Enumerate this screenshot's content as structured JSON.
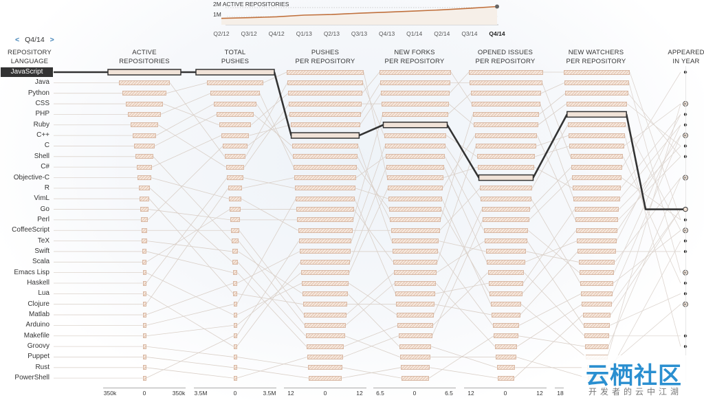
{
  "header": {
    "quarter": "Q4/14",
    "prev_arrow": "<",
    "next_arrow": ">"
  },
  "mini_chart": {
    "title": "2M ACTIVE REPOSITORIES",
    "ref_label": "1M",
    "quarters": [
      "Q2/12",
      "Q3/12",
      "Q4/12",
      "Q1/13",
      "Q2/13",
      "Q3/13",
      "Q4/13",
      "Q1/14",
      "Q2/14",
      "Q3/14",
      "Q4/14"
    ],
    "selected_quarter": "Q4/14",
    "line_color": "#c0703c",
    "values": [
      1.0,
      1.05,
      1.12,
      1.25,
      1.3,
      1.4,
      1.48,
      1.57,
      1.66,
      1.78,
      1.92
    ]
  },
  "columns": [
    {
      "line1": "REPOSITORY",
      "line2": "LANGUAGE"
    },
    {
      "line1": "ACTIVE",
      "line2": "REPOSITORIES"
    },
    {
      "line1": "TOTAL",
      "line2": "PUSHES"
    },
    {
      "line1": "PUSHES",
      "line2": "PER REPOSITORY"
    },
    {
      "line1": "NEW FORKS",
      "line2": "PER REPOSITORY"
    },
    {
      "line1": "OPENED ISSUES",
      "line2": "PER REPOSITORY"
    },
    {
      "line1": "NEW WATCHERS",
      "line2": "PER REPOSITORY"
    },
    {
      "line1": "APPEARED",
      "line2": "IN YEAR"
    }
  ],
  "languages": [
    "JavaScript",
    "Java",
    "Python",
    "CSS",
    "PHP",
    "Ruby",
    "C++",
    "C",
    "Shell",
    "C#",
    "Objective-C",
    "R",
    "VimL",
    "Go",
    "Perl",
    "CoffeeScript",
    "TeX",
    "Swift",
    "Scala",
    "Emacs Lisp",
    "Haskell",
    "Lua",
    "Clojure",
    "Matlab",
    "Arduino",
    "Makefile",
    "Groovy",
    "Puppet",
    "Rust",
    "PowerShell"
  ],
  "selected_language": "JavaScript",
  "axis_ticks": [
    [
      "350k",
      "0",
      "350k"
    ],
    [
      "3.5M",
      "0",
      "3.5M"
    ],
    [
      "12",
      "0",
      "12"
    ],
    [
      "6.5",
      "0",
      "6.5"
    ],
    [
      "12",
      "0",
      "12"
    ],
    [
      "18"
    ]
  ],
  "colors": {
    "bar_fill": "#f7e9df",
    "bar_stroke": "#d8b8a4",
    "highlight": "#333333",
    "link": "#3a7fb5"
  },
  "chart_data": {
    "type": "parallel-sets",
    "title": "",
    "highlight": {
      "language": "JavaScript",
      "ranks": [
        1,
        1,
        7,
        6,
        11,
        5,
        14
      ]
    },
    "watermark": "云栖社区",
    "watermark_sub": "开发者的云中江湖"
  }
}
